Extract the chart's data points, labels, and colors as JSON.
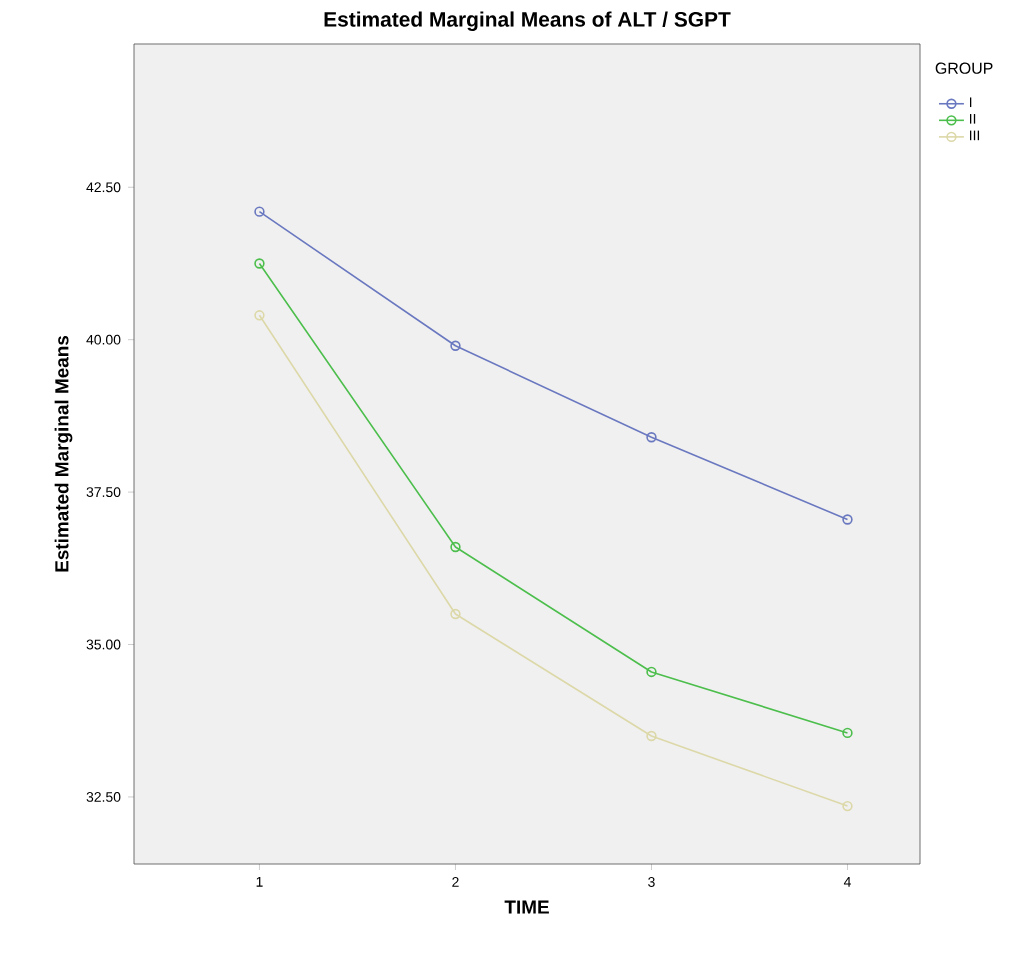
{
  "chart_data": {
    "type": "line",
    "title": "Estimated Marginal Means of ALT / SGPT",
    "xlabel": "TIME",
    "ylabel": "Estimated Marginal Means",
    "legend_title": "GROUP",
    "x": [
      1,
      2,
      3,
      4
    ],
    "series": [
      {
        "name": "I",
        "color": "#6a78c0",
        "values": [
          42.1,
          39.9,
          38.4,
          37.05
        ]
      },
      {
        "name": "II",
        "color": "#4cbe4c",
        "values": [
          41.25,
          36.6,
          34.55,
          33.55
        ]
      },
      {
        "name": "III",
        "color": "#dcd8a8",
        "values": [
          40.4,
          35.5,
          33.5,
          32.35
        ]
      }
    ],
    "xlim": [
      0.36,
      4.37
    ],
    "ylim": [
      31.4,
      44.85
    ],
    "xticks": [
      1,
      2,
      3,
      4
    ],
    "yticks": [
      {
        "value": 32.5,
        "label": "32.50"
      },
      {
        "value": 35,
        "label": "35.00"
      },
      {
        "value": 37.5,
        "label": "37.50"
      },
      {
        "value": 40,
        "label": "40.00"
      },
      {
        "value": 42.5,
        "label": "42.50"
      }
    ],
    "legend": "top right",
    "marker": "circle",
    "line_style": "solid",
    "grid": false
  }
}
